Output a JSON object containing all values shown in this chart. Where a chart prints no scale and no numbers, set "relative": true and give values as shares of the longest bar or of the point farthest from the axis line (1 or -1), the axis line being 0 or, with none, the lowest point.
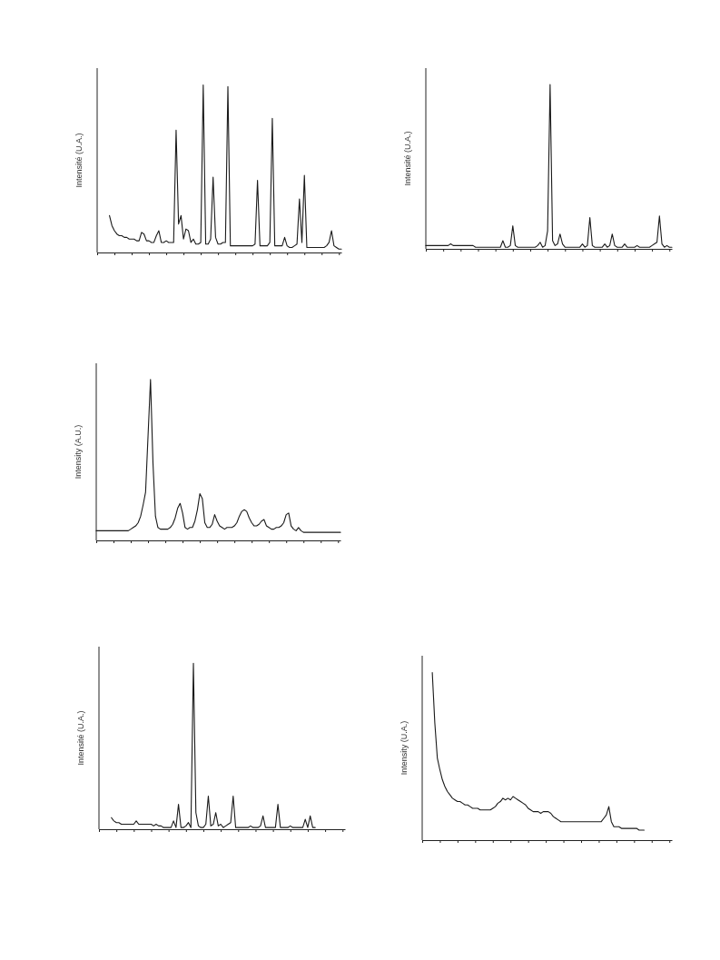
{
  "chart_data": [
    {
      "type": "line",
      "relative": true,
      "ylabel": "Intensité (U.A.)",
      "categories": [
        null,
        null,
        null,
        null,
        null,
        null,
        null,
        null,
        null,
        null,
        null,
        null,
        null,
        null,
        null,
        null,
        null,
        null,
        null,
        null,
        null,
        null,
        null,
        null,
        null,
        null,
        null,
        null,
        null,
        null,
        null,
        null,
        null,
        null,
        null,
        null,
        null,
        null,
        null,
        null,
        null,
        null,
        null,
        null,
        null,
        null,
        null,
        null,
        null,
        null,
        null,
        null,
        null,
        null,
        null,
        null,
        null,
        null,
        null,
        null,
        null,
        null,
        null,
        null,
        null,
        null,
        null,
        null,
        null,
        null,
        null,
        null,
        null,
        null,
        null,
        null,
        null,
        null,
        null,
        null,
        null,
        null,
        null,
        null,
        null,
        null,
        null,
        null,
        null,
        null,
        null,
        null,
        null,
        null,
        null,
        null,
        null,
        null,
        null,
        null
      ],
      "series": [
        {
          "color": "#1a1a1a",
          "values": [
            null,
            null,
            null,
            null,
            null,
            0.22,
            0.16,
            0.13,
            0.11,
            0.1,
            0.1,
            0.09,
            0.09,
            0.08,
            0.08,
            0.08,
            0.07,
            0.07,
            0.12,
            0.11,
            0.07,
            0.07,
            0.06,
            0.06,
            0.1,
            0.13,
            0.06,
            0.06,
            0.07,
            0.06,
            0.06,
            0.06,
            0.73,
            0.17,
            0.22,
            0.08,
            0.14,
            0.13,
            0.06,
            0.08,
            0.05,
            0.05,
            0.06,
            1.0,
            0.05,
            0.05,
            0.08,
            0.45,
            0.09,
            0.05,
            0.05,
            0.06,
            0.06,
            0.99,
            0.04,
            0.04,
            0.04,
            0.04,
            0.04,
            0.04,
            0.04,
            0.04,
            0.04,
            0.04,
            0.05,
            0.43,
            0.04,
            0.04,
            0.04,
            0.04,
            0.06,
            0.8,
            0.04,
            0.04,
            0.04,
            0.04,
            0.09,
            0.04,
            0.03,
            0.03,
            0.04,
            0.05,
            0.32,
            0.06,
            0.46,
            0.03,
            0.03,
            0.03,
            0.03,
            0.03,
            0.03,
            0.03,
            0.03,
            0.04,
            0.06,
            0.13,
            0.04,
            0.03,
            0.02,
            0.02
          ]
        }
      ]
    },
    {
      "type": "line",
      "relative": true,
      "ylabel": "Intensité (U.A.)",
      "categories": [
        null,
        null,
        null,
        null,
        null,
        null,
        null,
        null,
        null,
        null,
        null,
        null,
        null,
        null,
        null,
        null,
        null,
        null,
        null,
        null,
        null,
        null,
        null,
        null,
        null,
        null,
        null,
        null,
        null,
        null,
        null,
        null,
        null,
        null,
        null,
        null,
        null,
        null,
        null,
        null,
        null,
        null,
        null,
        null,
        null,
        null,
        null,
        null,
        null,
        null,
        null,
        null,
        null,
        null,
        null,
        null,
        null,
        null,
        null,
        null,
        null,
        null,
        null,
        null,
        null,
        null,
        null,
        null,
        null,
        null,
        null,
        null,
        null,
        null,
        null,
        null,
        null,
        null,
        null,
        null,
        null,
        null,
        null,
        null,
        null,
        null,
        null,
        null,
        null,
        null,
        null,
        null,
        null,
        null,
        null,
        null,
        null,
        null,
        null,
        null
      ],
      "series": [
        {
          "color": "#1a1a1a",
          "values": [
            0.02,
            0.02,
            0.02,
            0.02,
            0.02,
            0.02,
            0.02,
            0.02,
            0.02,
            0.02,
            0.03,
            0.02,
            0.02,
            0.02,
            0.02,
            0.02,
            0.02,
            0.02,
            0.02,
            0.02,
            0.01,
            0.01,
            0.01,
            0.01,
            0.01,
            0.01,
            0.01,
            0.01,
            0.01,
            0.01,
            0.01,
            0.05,
            0.01,
            0.01,
            0.02,
            0.14,
            0.02,
            0.01,
            0.01,
            0.01,
            0.01,
            0.01,
            0.01,
            0.01,
            0.01,
            0.02,
            0.04,
            0.01,
            0.02,
            0.11,
            1.0,
            0.05,
            0.02,
            0.03,
            0.09,
            0.03,
            0.01,
            0.01,
            0.01,
            0.01,
            0.01,
            0.01,
            0.01,
            0.03,
            0.01,
            0.02,
            0.19,
            0.02,
            0.01,
            0.01,
            0.01,
            0.01,
            0.03,
            0.01,
            0.02,
            0.09,
            0.02,
            0.01,
            0.01,
            0.01,
            0.03,
            0.01,
            0.01,
            0.01,
            0.01,
            0.02,
            0.01,
            0.01,
            0.01,
            0.01,
            0.01,
            0.02,
            0.03,
            0.04,
            0.2,
            0.03,
            0.01,
            0.02,
            0.01,
            0.01
          ]
        }
      ]
    },
    {
      "type": "line",
      "relative": true,
      "ylabel": "Intensity (A.U.)",
      "categories": [
        null,
        null,
        null,
        null,
        null,
        null,
        null,
        null,
        null,
        null,
        null,
        null,
        null,
        null,
        null,
        null,
        null,
        null,
        null,
        null,
        null,
        null,
        null,
        null,
        null,
        null,
        null,
        null,
        null,
        null,
        null,
        null,
        null,
        null,
        null,
        null,
        null,
        null,
        null,
        null,
        null,
        null,
        null,
        null,
        null,
        null,
        null,
        null,
        null,
        null,
        null,
        null,
        null,
        null,
        null,
        null,
        null,
        null,
        null,
        null,
        null,
        null,
        null,
        null,
        null,
        null,
        null,
        null,
        null,
        null,
        null,
        null,
        null,
        null,
        null,
        null,
        null,
        null,
        null,
        null,
        null,
        null,
        null,
        null,
        null,
        null,
        null,
        null,
        null,
        null,
        null,
        null,
        null,
        null,
        null,
        null,
        null,
        null,
        null,
        null
      ],
      "series": [
        {
          "color": "#1a1a1a",
          "values": [
            0.06,
            0.06,
            0.06,
            0.06,
            0.06,
            0.06,
            0.06,
            0.06,
            0.06,
            0.06,
            0.06,
            0.06,
            0.06,
            0.06,
            0.07,
            0.08,
            0.09,
            0.11,
            0.15,
            0.22,
            0.3,
            0.65,
            1.0,
            0.48,
            0.15,
            0.08,
            0.07,
            0.07,
            0.07,
            0.07,
            0.08,
            0.1,
            0.14,
            0.2,
            0.23,
            0.17,
            0.08,
            0.07,
            0.08,
            0.08,
            0.12,
            0.19,
            0.29,
            0.26,
            0.11,
            0.08,
            0.08,
            0.1,
            0.16,
            0.12,
            0.09,
            0.08,
            0.07,
            0.08,
            0.08,
            0.08,
            0.09,
            0.11,
            0.15,
            0.18,
            0.19,
            0.18,
            0.14,
            0.11,
            0.09,
            0.09,
            0.1,
            0.12,
            0.13,
            0.09,
            0.08,
            0.07,
            0.07,
            0.08,
            0.08,
            0.09,
            0.11,
            0.16,
            0.17,
            0.09,
            0.07,
            0.06,
            0.08,
            0.06,
            0.05,
            0.05,
            0.05,
            0.05,
            0.05,
            0.05,
            0.05,
            0.05,
            0.05,
            0.05,
            0.05,
            0.05,
            0.05,
            0.05,
            0.05,
            0.05
          ]
        }
      ]
    },
    {
      "type": "line",
      "relative": true,
      "ylabel": "Intensité (U.A.)",
      "categories": [
        null,
        null,
        null,
        null,
        null,
        null,
        null,
        null,
        null,
        null,
        null,
        null,
        null,
        null,
        null,
        null,
        null,
        null,
        null,
        null,
        null,
        null,
        null,
        null,
        null,
        null,
        null,
        null,
        null,
        null,
        null,
        null,
        null,
        null,
        null,
        null,
        null,
        null,
        null,
        null,
        null,
        null,
        null,
        null,
        null,
        null,
        null,
        null,
        null,
        null,
        null,
        null,
        null,
        null,
        null,
        null,
        null,
        null,
        null,
        null,
        null,
        null,
        null,
        null,
        null,
        null,
        null,
        null,
        null,
        null,
        null,
        null,
        null,
        null,
        null,
        null,
        null,
        null,
        null,
        null,
        null,
        null,
        null,
        null,
        null,
        null,
        null,
        null,
        null,
        null,
        null,
        null,
        null,
        null,
        null,
        null,
        null,
        null,
        null,
        null
      ],
      "series": [
        {
          "color": "#1a1a1a",
          "values": [
            null,
            null,
            null,
            null,
            null,
            0.07,
            0.05,
            0.04,
            0.04,
            0.03,
            0.03,
            0.03,
            0.03,
            0.03,
            0.03,
            0.05,
            0.03,
            0.03,
            0.03,
            0.03,
            0.03,
            0.03,
            0.02,
            0.03,
            0.02,
            0.02,
            0.01,
            0.01,
            0.01,
            0.01,
            0.05,
            0.01,
            0.15,
            0.01,
            0.01,
            0.02,
            0.04,
            0.01,
            1.0,
            0.1,
            0.02,
            0.01,
            0.01,
            0.03,
            0.2,
            0.02,
            0.03,
            0.1,
            0.02,
            0.03,
            0.01,
            0.02,
            0.03,
            0.04,
            0.2,
            0.01,
            0.01,
            0.01,
            0.01,
            0.01,
            0.01,
            0.02,
            0.01,
            0.01,
            0.01,
            0.02,
            0.08,
            0.01,
            0.01,
            0.01,
            0.01,
            0.01,
            0.15,
            0.01,
            0.01,
            0.01,
            0.01,
            0.02,
            0.01,
            0.01,
            0.01,
            0.01,
            0.01,
            0.06,
            0.01,
            0.08,
            0.01,
            0.01,
            null,
            null,
            null,
            null,
            null,
            null,
            null,
            null,
            null,
            null,
            null,
            null
          ]
        }
      ]
    },
    {
      "type": "line",
      "relative": true,
      "ylabel": "Intensity (U.A.)",
      "categories": [
        null,
        null,
        null,
        null,
        null,
        null,
        null,
        null,
        null,
        null,
        null,
        null,
        null,
        null,
        null,
        null,
        null,
        null,
        null,
        null,
        null,
        null,
        null,
        null,
        null,
        null,
        null,
        null,
        null,
        null,
        null,
        null,
        null,
        null,
        null,
        null,
        null,
        null,
        null,
        null,
        null,
        null,
        null,
        null,
        null,
        null,
        null,
        null,
        null,
        null,
        null,
        null,
        null,
        null,
        null,
        null,
        null,
        null,
        null,
        null,
        null,
        null,
        null,
        null,
        null,
        null,
        null,
        null,
        null,
        null,
        null,
        null,
        null,
        null,
        null,
        null,
        null,
        null,
        null,
        null,
        null,
        null,
        null,
        null,
        null,
        null,
        null,
        null,
        null,
        null,
        null,
        null,
        null,
        null,
        null,
        null,
        null,
        null,
        null,
        null
      ],
      "series": [
        {
          "color": "#1a1a1a",
          "values": [
            null,
            null,
            null,
            null,
            1.0,
            0.7,
            0.49,
            0.42,
            0.36,
            0.32,
            0.29,
            0.27,
            0.25,
            0.24,
            0.23,
            0.23,
            0.22,
            0.21,
            0.21,
            0.2,
            0.19,
            0.19,
            0.19,
            0.18,
            0.18,
            0.18,
            0.18,
            0.18,
            0.19,
            0.2,
            0.22,
            0.23,
            0.25,
            0.24,
            0.25,
            0.24,
            0.26,
            0.25,
            0.24,
            0.23,
            0.22,
            0.21,
            0.19,
            0.18,
            0.17,
            0.17,
            0.17,
            0.16,
            0.17,
            0.17,
            0.17,
            0.16,
            0.14,
            0.13,
            0.12,
            0.11,
            0.11,
            0.11,
            0.11,
            0.11,
            0.11,
            0.11,
            0.11,
            0.11,
            0.11,
            0.11,
            0.11,
            0.11,
            0.11,
            0.11,
            0.11,
            0.11,
            0.13,
            0.15,
            0.2,
            0.11,
            0.08,
            0.08,
            0.08,
            0.07,
            0.07,
            0.07,
            0.07,
            0.07,
            0.07,
            0.07,
            0.06,
            0.06,
            0.06,
            null,
            null,
            null,
            null,
            null,
            null,
            null,
            null,
            null,
            null,
            null
          ]
        }
      ]
    }
  ]
}
